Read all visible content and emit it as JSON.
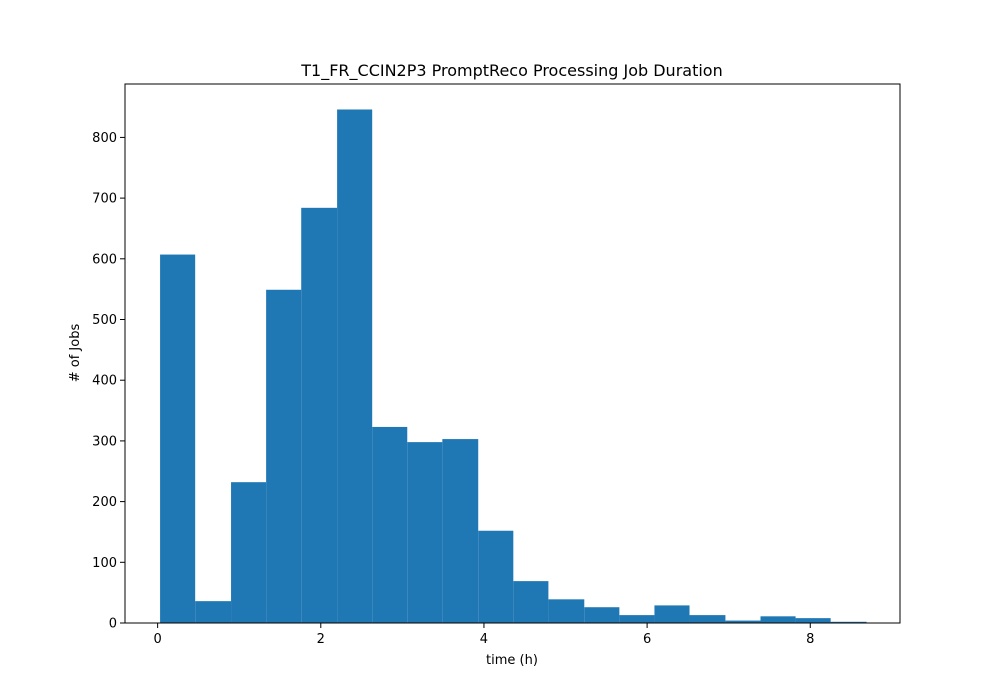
{
  "chart_data": {
    "type": "bar",
    "title": "T1_FR_CCIN2P3 PromptReco Processing Job Duration",
    "xlabel": "time (h)",
    "ylabel": "# of Jobs",
    "bin_edges": [
      0.03,
      0.46,
      0.9,
      1.33,
      1.76,
      2.2,
      2.63,
      3.06,
      3.49,
      3.93,
      4.36,
      4.79,
      5.23,
      5.66,
      6.09,
      6.52,
      6.96,
      7.39,
      7.82,
      8.25,
      8.69
    ],
    "values": [
      607,
      36,
      232,
      549,
      684,
      846,
      323,
      298,
      303,
      152,
      69,
      39,
      26,
      13,
      29,
      13,
      4,
      11,
      8,
      2
    ],
    "xlim": [
      -0.4,
      9.1
    ],
    "ylim": [
      0,
      888
    ],
    "xticks": [
      0,
      2,
      4,
      6,
      8
    ],
    "yticks": [
      0,
      100,
      200,
      300,
      400,
      500,
      600,
      700,
      800
    ],
    "bar_color": "#1f77b4",
    "grid": false,
    "legend": "none"
  }
}
